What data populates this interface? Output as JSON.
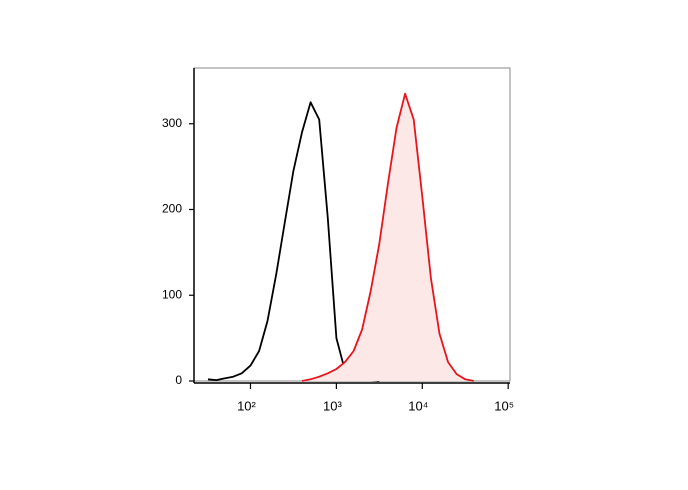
{
  "chart_data": {
    "type": "histogram-overlay",
    "xscale": "log",
    "xlim": [
      22,
      105000
    ],
    "ylim": [
      0,
      365
    ],
    "xticks": [
      {
        "value": 100,
        "label": "10²"
      },
      {
        "value": 1000,
        "label": "10³"
      },
      {
        "value": 10000,
        "label": "10⁴"
      },
      {
        "value": 100000,
        "label": "10⁵"
      }
    ],
    "yticks": [
      0,
      100,
      200,
      300
    ],
    "series": [
      {
        "color": "#000000",
        "fill": null,
        "x": [
          32,
          40,
          50,
          63,
          79,
          100,
          126,
          158,
          200,
          251,
          316,
          398,
          501,
          631,
          794,
          1000,
          1259,
          1585,
          1995,
          2512,
          3162
        ],
        "values": [
          2,
          1,
          3,
          5,
          9,
          18,
          35,
          70,
          125,
          185,
          245,
          290,
          325,
          305,
          190,
          50,
          12,
          5,
          3,
          1,
          0
        ]
      },
      {
        "color": "#e8141c",
        "fill": "#fde8e8",
        "x": [
          398,
          501,
          631,
          794,
          1000,
          1259,
          1585,
          1995,
          2512,
          3162,
          3981,
          5012,
          6310,
          7943,
          10000,
          12589,
          15849,
          19953,
          25119,
          31623,
          39811
        ],
        "values": [
          0,
          2,
          5,
          9,
          14,
          22,
          35,
          60,
          105,
          160,
          230,
          295,
          335,
          305,
          215,
          120,
          55,
          22,
          8,
          2,
          0
        ]
      }
    ]
  }
}
